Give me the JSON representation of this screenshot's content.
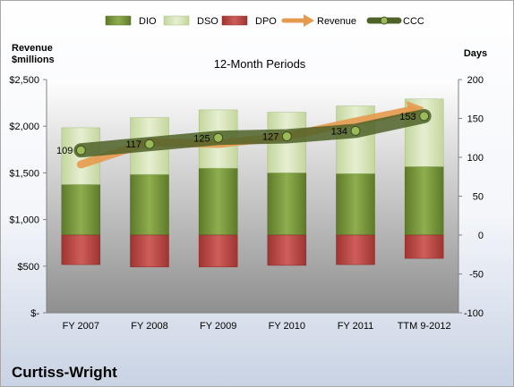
{
  "company_name": "Curtiss-Wright",
  "chart_data": {
    "type": "bar",
    "title": "12-Month Periods",
    "left_axis_title": "Revenue\n$millions",
    "right_axis_title": "Days",
    "categories": [
      "FY 2007",
      "FY 2008",
      "FY 2009",
      "FY 2010",
      "FY 2011",
      "TTM 9-2012"
    ],
    "left_axis": {
      "min": 0,
      "max": 2500,
      "ticks": [
        0,
        500,
        1000,
        1500,
        2000,
        2500
      ],
      "tick_labels": [
        "$-",
        "$500",
        "$1,000",
        "$1,500",
        "$2,000",
        "$2,500"
      ]
    },
    "right_axis": {
      "min": -100,
      "max": 200,
      "ticks": [
        -100,
        -50,
        0,
        50,
        100,
        150,
        200
      ],
      "tick_labels": [
        "-100",
        "-50",
        "0",
        "50",
        "100",
        "150",
        "200"
      ]
    },
    "series": [
      {
        "name": "DIO",
        "kind": "stacked-bar",
        "axis": "right",
        "values": [
          65,
          78,
          86,
          80,
          79,
          88
        ],
        "color": "#77933c"
      },
      {
        "name": "DSO",
        "kind": "stacked-bar",
        "axis": "right",
        "values": [
          73,
          73,
          75,
          78,
          87,
          87
        ],
        "color": "#d7e4bd"
      },
      {
        "name": "DPO",
        "kind": "negative-bar",
        "axis": "right",
        "values": [
          -38,
          -41,
          -41,
          -39,
          -38,
          -30
        ],
        "color": "#c0504d"
      },
      {
        "name": "Revenue",
        "kind": "line",
        "axis": "left",
        "values": [
          1590,
          1830,
          1810,
          1890,
          2050,
          2200
        ],
        "color": "#e59a4e"
      },
      {
        "name": "CCC",
        "kind": "line",
        "axis": "right",
        "values": [
          109,
          117,
          125,
          127,
          134,
          153
        ],
        "labels": [
          "109",
          "117",
          "125",
          "127",
          "134",
          "153"
        ],
        "color": "#4f6228"
      }
    ],
    "grid": false,
    "legend_position": "top"
  }
}
